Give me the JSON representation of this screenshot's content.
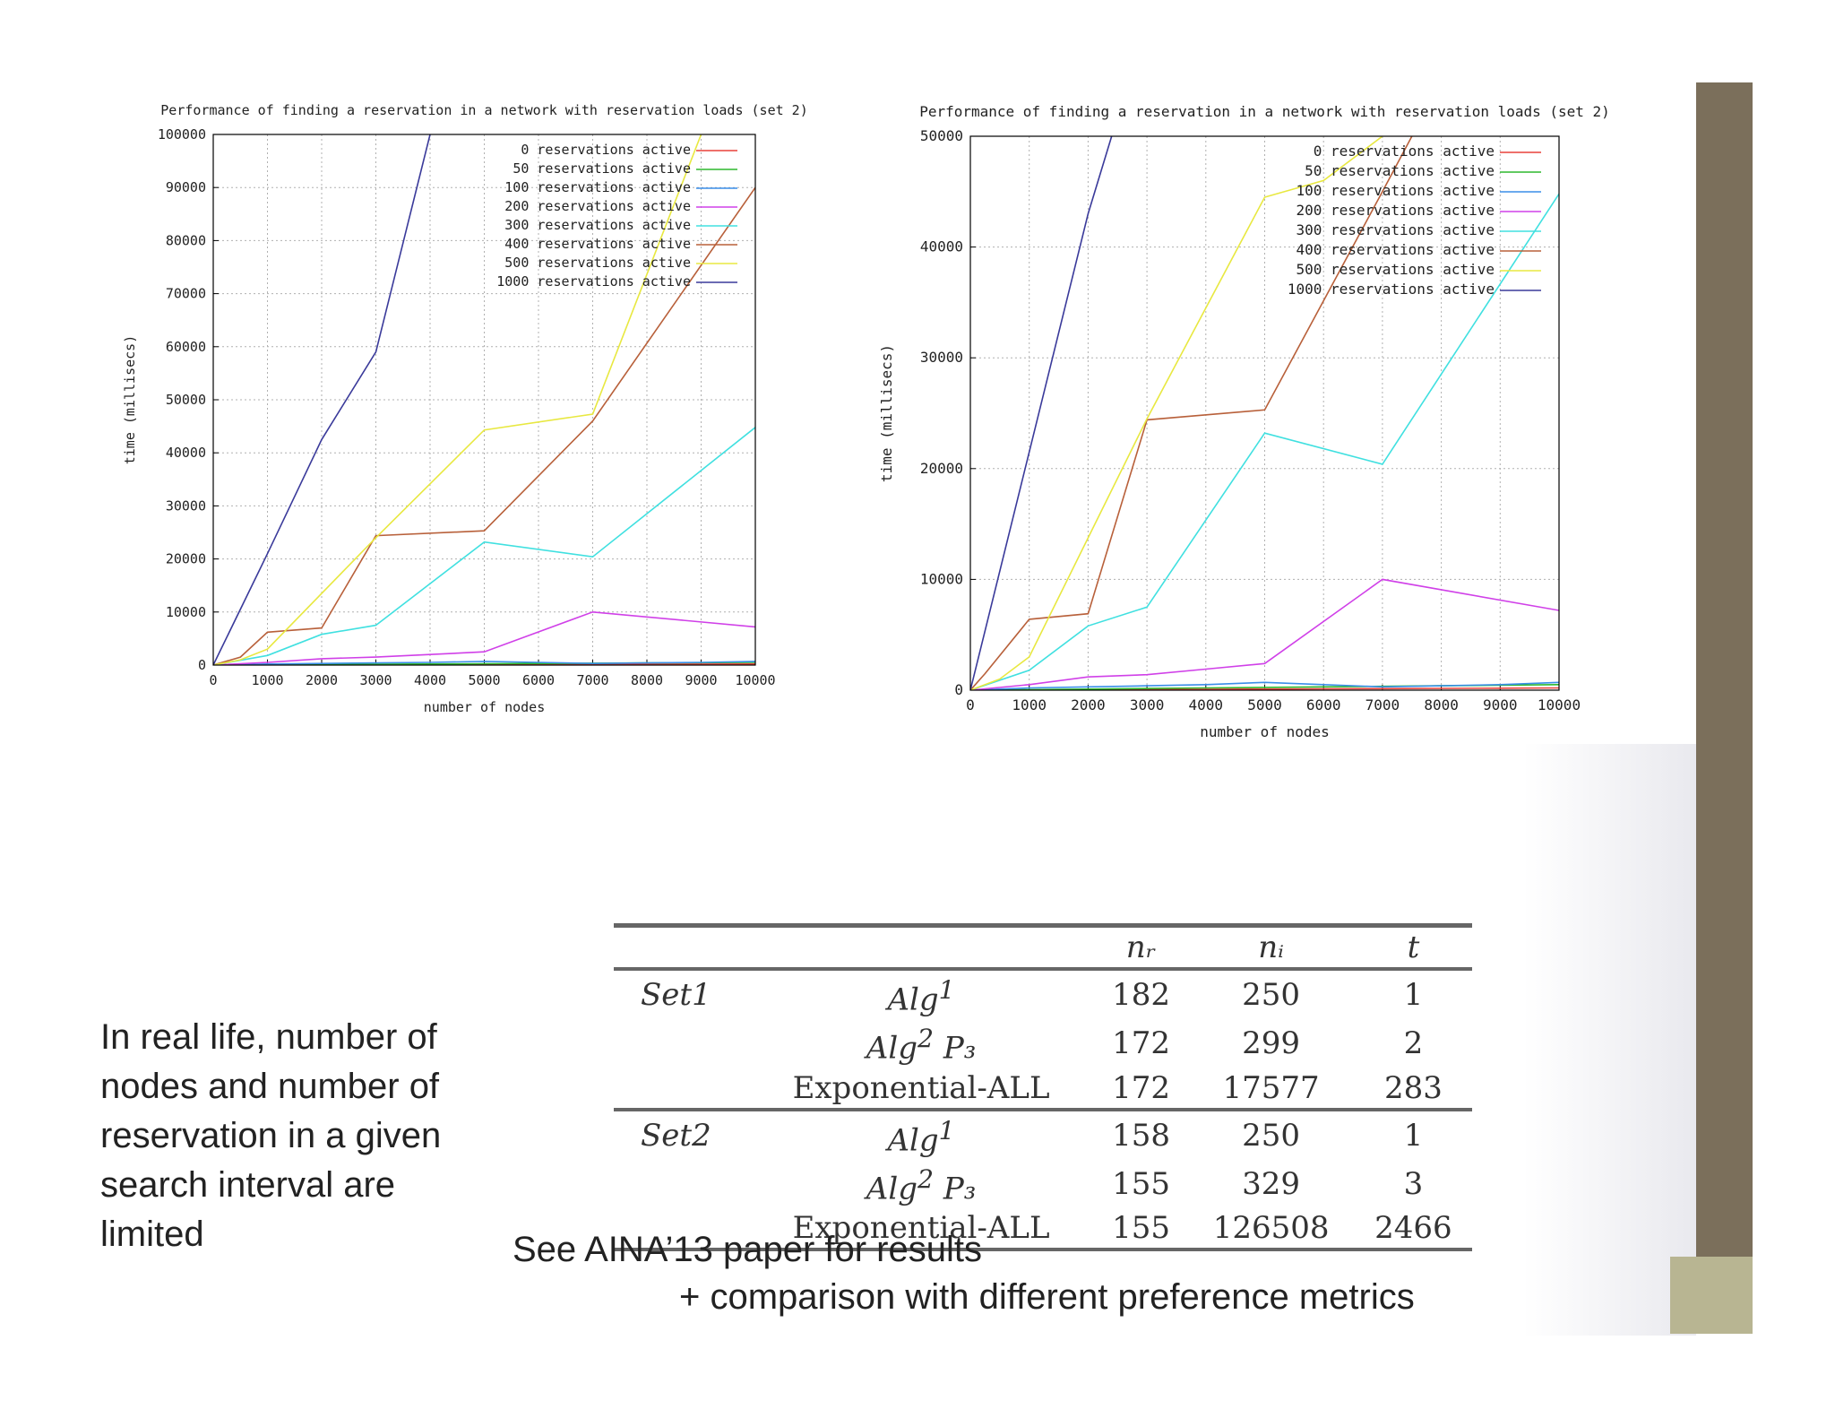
{
  "charts": [
    {
      "id": "left",
      "title": "Performance of finding a reservation in a network with reservation loads (set 2)",
      "xlabel": "number of nodes",
      "ylabel": "time (millisecs)",
      "xlim": [
        0,
        10000
      ],
      "ylim": [
        0,
        100000
      ],
      "xticks": [
        "0",
        "1000",
        "2000",
        "3000",
        "4000",
        "5000",
        "6000",
        "7000",
        "8000",
        "9000",
        "10000"
      ],
      "yticks": [
        "0",
        "10000",
        "20000",
        "30000",
        "40000",
        "50000",
        "60000",
        "70000",
        "80000",
        "90000",
        "100000"
      ]
    },
    {
      "id": "right",
      "title": "Performance of finding a reservation in a network with reservation loads (set 2)",
      "xlabel": "number of nodes",
      "ylabel": "time (millisecs)",
      "xlim": [
        0,
        10000
      ],
      "ylim": [
        0,
        50000
      ],
      "xticks": [
        "0",
        "1000",
        "2000",
        "3000",
        "4000",
        "5000",
        "6000",
        "7000",
        "8000",
        "9000",
        "10000"
      ],
      "yticks": [
        "0",
        "10000",
        "20000",
        "30000",
        "40000",
        "50000"
      ]
    }
  ],
  "chart_data": [
    {
      "type": "line",
      "title": "Performance of finding a reservation in a network with reservation loads (set 2)",
      "xlabel": "number of nodes",
      "ylabel": "time (millisecs)",
      "xlim": [
        0,
        10000
      ],
      "ylim": [
        0,
        100000
      ],
      "grid": true,
      "legend_position": "top-right",
      "series": [
        {
          "name": "0 reservations active",
          "color": "#e8403a",
          "x": [
            0,
            1000,
            2000,
            3000,
            4000,
            5000,
            6000,
            7000,
            8000,
            9000,
            10000
          ],
          "y": [
            0,
            20,
            40,
            60,
            80,
            100,
            120,
            140,
            160,
            180,
            200
          ]
        },
        {
          "name": "50 reservations active",
          "color": "#2eb82e",
          "x": [
            0,
            1000,
            2000,
            3000,
            4000,
            5000,
            6000,
            7000,
            8000,
            9000,
            10000
          ],
          "y": [
            0,
            50,
            100,
            150,
            200,
            250,
            300,
            350,
            400,
            450,
            500
          ]
        },
        {
          "name": "100 reservations active",
          "color": "#3a8ee8",
          "x": [
            0,
            1000,
            2000,
            3000,
            4000,
            5000,
            6000,
            7000,
            8000,
            9000,
            10000
          ],
          "y": [
            0,
            200,
            300,
            400,
            500,
            700,
            500,
            300,
            400,
            500,
            700
          ]
        },
        {
          "name": "200 reservations active",
          "color": "#d040e8",
          "x": [
            0,
            1000,
            2000,
            3000,
            4000,
            5000,
            7000,
            10000
          ],
          "y": [
            0,
            500,
            1200,
            1500,
            2000,
            2500,
            10000,
            7200
          ]
        },
        {
          "name": "300 reservations active",
          "color": "#40e0e0",
          "x": [
            0,
            1000,
            2000,
            3000,
            5000,
            7000,
            10000
          ],
          "y": [
            0,
            1800,
            5800,
            7500,
            23200,
            20400,
            44800
          ]
        },
        {
          "name": "400 reservations active",
          "color": "#b8603a",
          "x": [
            0,
            500,
            1000,
            2000,
            3000,
            5000,
            7000,
            10000
          ],
          "y": [
            0,
            1500,
            6200,
            7000,
            24400,
            25300,
            46000,
            90000
          ]
        },
        {
          "name": "500 reservations active",
          "color": "#e8e840",
          "x": [
            0,
            500,
            1000,
            3000,
            5000,
            7000,
            9000
          ],
          "y": [
            0,
            1000,
            3000,
            24000,
            44300,
            47300,
            100000
          ]
        },
        {
          "name": "1000 reservations active",
          "color": "#3a3a9a",
          "x": [
            0,
            1000,
            2000,
            3000,
            4000
          ],
          "y": [
            0,
            21000,
            42500,
            59000,
            100000
          ]
        }
      ]
    },
    {
      "type": "line",
      "title": "Performance of finding a reservation in a network with reservation loads (set 2)",
      "xlabel": "number of nodes",
      "ylabel": "time (millisecs)",
      "xlim": [
        0,
        10000
      ],
      "ylim": [
        0,
        50000
      ],
      "grid": true,
      "legend_position": "top-right",
      "series": [
        {
          "name": "0 reservations active",
          "color": "#e8403a",
          "x": [
            0,
            1000,
            2000,
            3000,
            4000,
            5000,
            6000,
            7000,
            8000,
            9000,
            10000
          ],
          "y": [
            0,
            20,
            40,
            60,
            80,
            100,
            120,
            140,
            160,
            180,
            200
          ]
        },
        {
          "name": "50 reservations active",
          "color": "#2eb82e",
          "x": [
            0,
            1000,
            2000,
            3000,
            4000,
            5000,
            6000,
            7000,
            8000,
            9000,
            10000
          ],
          "y": [
            0,
            50,
            100,
            150,
            200,
            250,
            300,
            350,
            400,
            450,
            500
          ]
        },
        {
          "name": "100 reservations active",
          "color": "#3a8ee8",
          "x": [
            0,
            1000,
            2000,
            3000,
            4000,
            5000,
            6000,
            7000,
            8000,
            9000,
            10000
          ],
          "y": [
            0,
            200,
            300,
            400,
            500,
            700,
            500,
            300,
            400,
            500,
            700
          ]
        },
        {
          "name": "200 reservations active",
          "color": "#d040e8",
          "x": [
            0,
            1000,
            2000,
            3000,
            4000,
            5000,
            7000,
            10000
          ],
          "y": [
            0,
            500,
            1200,
            1400,
            1900,
            2400,
            10000,
            7200
          ]
        },
        {
          "name": "300 reservations active",
          "color": "#40e0e0",
          "x": [
            0,
            1000,
            2000,
            3000,
            5000,
            7000,
            10000
          ],
          "y": [
            0,
            1800,
            5800,
            7500,
            23200,
            20400,
            44800
          ]
        },
        {
          "name": "400 reservations active",
          "color": "#b8603a",
          "x": [
            0,
            250,
            1000,
            2000,
            3000,
            5000,
            7000,
            7500
          ],
          "y": [
            0,
            1500,
            6400,
            6900,
            24400,
            25300,
            45000,
            50000
          ]
        },
        {
          "name": "500 reservations active",
          "color": "#e8e840",
          "x": [
            0,
            500,
            1000,
            3000,
            5000,
            6000,
            7000
          ],
          "y": [
            0,
            1000,
            3000,
            24500,
            44500,
            46000,
            50000
          ]
        },
        {
          "name": "1000 reservations active",
          "color": "#3a3a9a",
          "x": [
            0,
            1000,
            2000,
            2400
          ],
          "y": [
            0,
            21500,
            43000,
            50000
          ]
        }
      ]
    }
  ],
  "table": {
    "headers": [
      "",
      "",
      "n_r",
      "n_i",
      "t"
    ],
    "header_display": {
      "nr": "nᵣ",
      "ni": "nᵢ",
      "t": "t"
    },
    "rows": [
      {
        "set": "Set1",
        "alg": "Alg",
        "sup": "1",
        "sub": "",
        "nr": "182",
        "ni": "250",
        "t": "1"
      },
      {
        "set": "",
        "alg": "Alg",
        "sup": "2",
        "sub": " P₃",
        "nr": "172",
        "ni": "299",
        "t": "2"
      },
      {
        "set": "",
        "alg": "Exponential-ALL",
        "sup": "",
        "sub": "",
        "nr": "172",
        "ni": "17577",
        "t": "283"
      },
      {
        "set": "Set2",
        "alg": "Alg",
        "sup": "1",
        "sub": "",
        "nr": "158",
        "ni": "250",
        "t": "1"
      },
      {
        "set": "",
        "alg": "Alg",
        "sup": "2",
        "sub": " P₃",
        "nr": "155",
        "ni": "329",
        "t": "3"
      },
      {
        "set": "",
        "alg": "Exponential-ALL",
        "sup": "",
        "sub": "",
        "nr": "155",
        "ni": "126508",
        "t": "2466"
      }
    ]
  },
  "text": {
    "note": "In real life, number of nodes and number of reservation in a given search interval are limited",
    "aina_line1": "See AINA’13 paper for results",
    "aina_line2": "+ comparison with different preference metrics"
  },
  "colors": {
    "accent_bar": "#7b6f5b",
    "accent_square": "#b8b592"
  }
}
